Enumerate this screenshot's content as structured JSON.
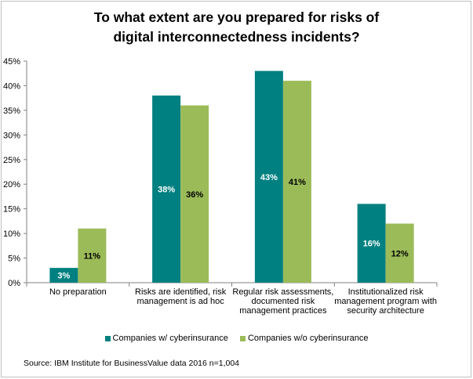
{
  "chart_data": {
    "type": "bar",
    "title_lines": [
      "To what extent are you prepared for risks of",
      "digital interconnectedness incidents?"
    ],
    "categories": [
      [
        "No preparation"
      ],
      [
        "Risks are identified, risk",
        "management is ad hoc"
      ],
      [
        "Regular risk assessments,",
        "documented risk",
        "management practices"
      ],
      [
        "Institutionalized risk",
        "management program with",
        "security architecture"
      ]
    ],
    "series": [
      {
        "name": "Companies w/ cyberinsurance",
        "color": "#008080",
        "values": [
          3,
          38,
          43,
          16
        ],
        "labels": [
          "3%",
          "38%",
          "43%",
          "16%"
        ]
      },
      {
        "name": "Companies w/o cyberinsurance",
        "color": "#9BBB59",
        "values": [
          11,
          36,
          41,
          12
        ],
        "labels": [
          "11%",
          "36%",
          "41%",
          "12%"
        ]
      }
    ],
    "y_ticks": [
      "0%",
      "5%",
      "10%",
      "15%",
      "20%",
      "25%",
      "30%",
      "35%",
      "40%",
      "45%"
    ],
    "ylim": [
      0,
      45
    ],
    "grid": false,
    "legend_position": "bottom"
  },
  "source": "Source: IBM Institute for BusinessValue data 2016 n=1,004"
}
